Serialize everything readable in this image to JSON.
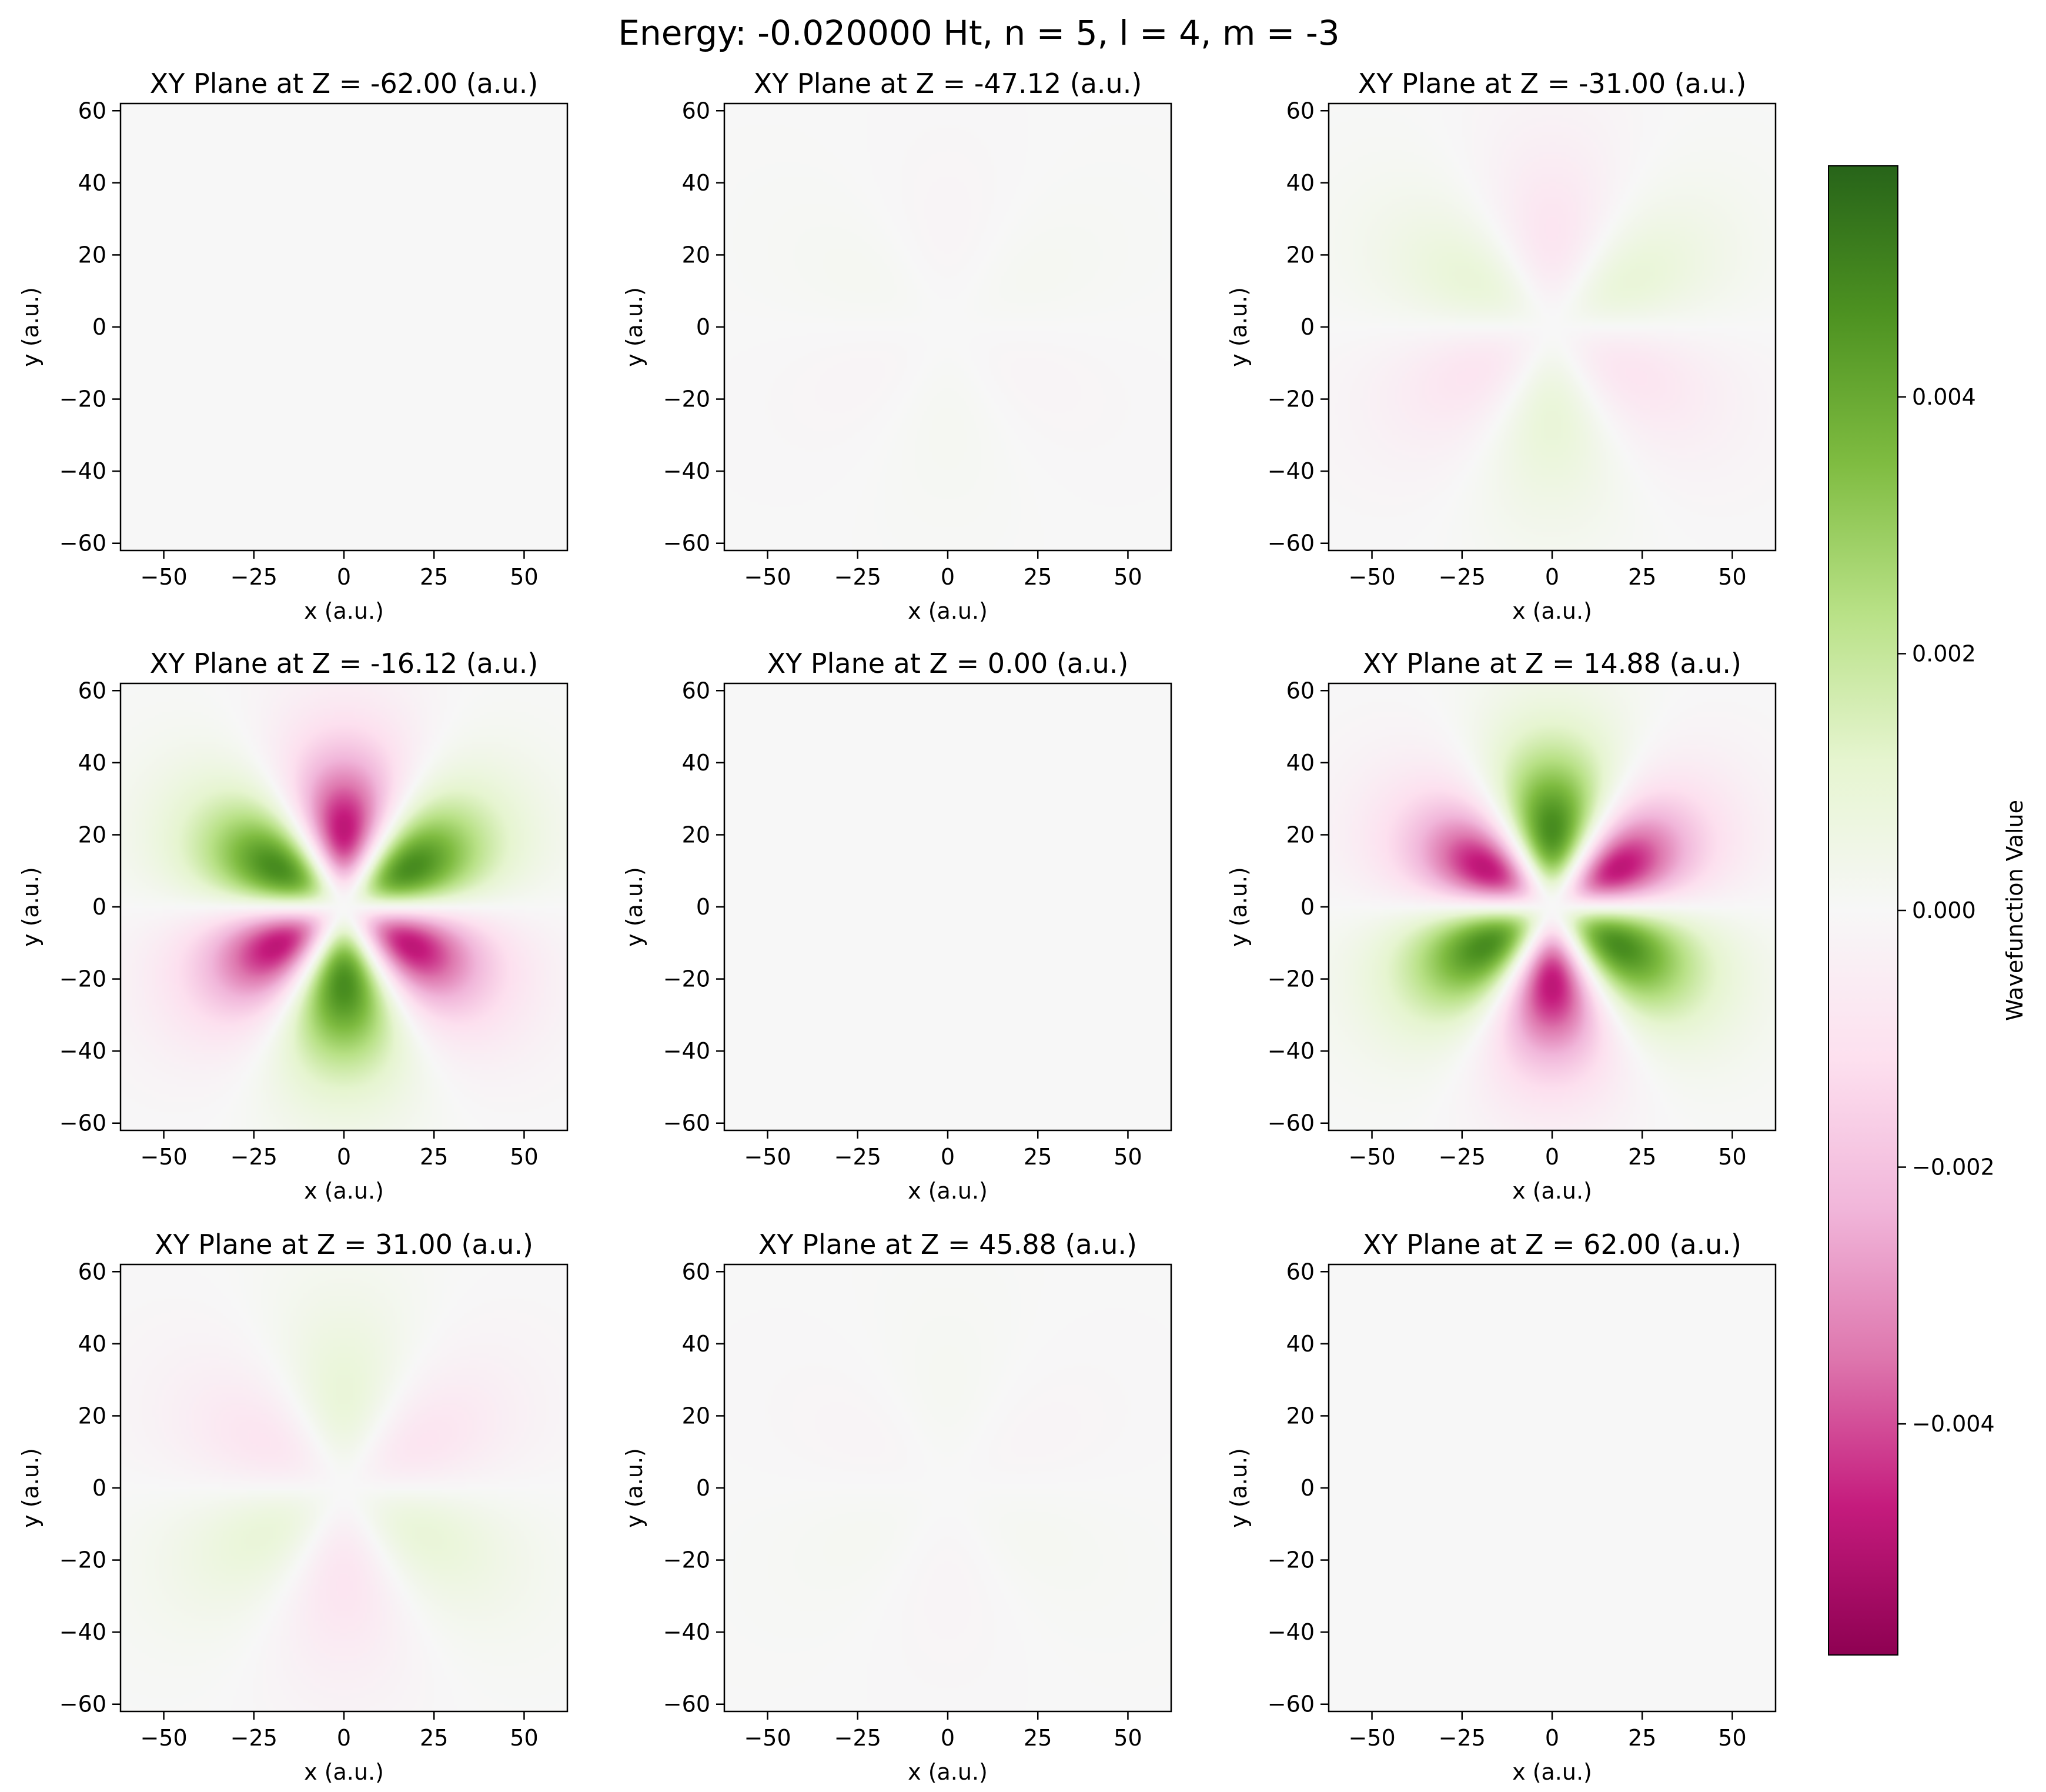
{
  "chart_data": {
    "type": "heatmap",
    "title": "Energy: -0.020000 Ht, n = 5, l = 4, m = -3",
    "quantum_numbers": {
      "energy_ht": -0.02,
      "n": 5,
      "l": 4,
      "m": -3
    },
    "colormap": "PiYG",
    "colormap_stops": [
      "#8e0152",
      "#c51b7d",
      "#de77ae",
      "#f1b6da",
      "#fde0ef",
      "#f7f7f7",
      "#e6f5d0",
      "#b8e186",
      "#7fbc41",
      "#4d9221",
      "#276419"
    ],
    "panel_defaults": {
      "xlabel": "x (a.u.)",
      "ylabel": "y (a.u.)",
      "xlim": [
        -62,
        62
      ],
      "ylim": [
        -62,
        62
      ],
      "xticks": [
        -50,
        -25,
        0,
        25,
        50
      ],
      "xtick_labels": [
        "−50",
        "−25",
        "0",
        "25",
        "50"
      ],
      "yticks": [
        -60,
        -40,
        -20,
        0,
        20,
        40,
        60
      ],
      "ytick_labels": [
        "−60",
        "−40",
        "−20",
        "0",
        "20",
        "40",
        "60"
      ]
    },
    "panels": [
      {
        "title": "XY Plane at Z = -62.00 (a.u.)",
        "z": -62.0,
        "lobe_peak": 0.0,
        "lobe_radius": 27
      },
      {
        "title": "XY Plane at Z = -47.12 (a.u.)",
        "z": -47.12,
        "lobe_peak": 0.00015,
        "lobe_radius": 30
      },
      {
        "title": "XY Plane at Z = -31.00 (a.u.)",
        "z": -31.0,
        "lobe_peak": 0.0009,
        "lobe_radius": 27
      },
      {
        "title": "XY Plane at Z = -16.12 (a.u.)",
        "z": -16.12,
        "lobe_peak": 0.0048,
        "lobe_radius": 22
      },
      {
        "title": "XY Plane at Z = 0.00 (a.u.)",
        "z": 0.0,
        "lobe_peak": 0.0,
        "lobe_radius": 22
      },
      {
        "title": "XY Plane at Z = 14.88 (a.u.)",
        "z": 14.88,
        "lobe_peak": -0.0048,
        "lobe_radius": 22
      },
      {
        "title": "XY Plane at Z = 31.00 (a.u.)",
        "z": 31.0,
        "lobe_peak": -0.0009,
        "lobe_radius": 27
      },
      {
        "title": "XY Plane at Z = 45.88 (a.u.)",
        "z": 45.88,
        "lobe_peak": -0.00015,
        "lobe_radius": 30
      },
      {
        "title": "XY Plane at Z = 62.00 (a.u.)",
        "z": 62.0,
        "lobe_peak": 0.0,
        "lobe_radius": 27
      }
    ],
    "colorbar": {
      "label": "Wavefunction Value",
      "vmin": -0.0058,
      "vmax": 0.0058,
      "ticks": [
        0.004,
        0.002,
        0.0,
        -0.002,
        -0.004
      ],
      "tick_labels": [
        "0.004",
        "0.002",
        "0.000",
        "−0.002",
        "−0.004"
      ]
    }
  }
}
